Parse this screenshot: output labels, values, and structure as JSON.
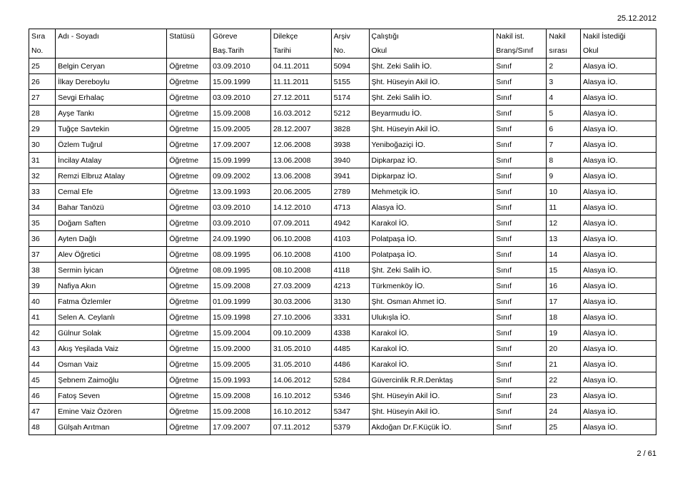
{
  "dateTop": "25.12.2012",
  "footer": "2 / 61",
  "headerRow1": [
    "Sıra",
    "Adı - Soyadı",
    "Statüsü",
    "Göreve",
    "Dilekçe",
    "Arşiv",
    "Çalıştığı",
    "Nakil ist.",
    "Nakil",
    "Nakil İstediği"
  ],
  "headerRow2": [
    "No.",
    "",
    "",
    "Baş.Tarih",
    "Tarihi",
    "No.",
    "Okul",
    "Branş/Sınıf",
    "sırası",
    "Okul"
  ],
  "rows": [
    [
      "25",
      "Belgin Ceryan",
      "Öğretme",
      "03.09.2010",
      "04.11.2011",
      "5094",
      "Şht. Zeki Salih İO.",
      "Sınıf",
      "2",
      "Alasya İO."
    ],
    [
      "26",
      "İlkay Dereboylu",
      "Öğretme",
      "15.09.1999",
      "11.11.2011",
      "5155",
      "Şht. Hüseyin Akil İO.",
      "Sınıf",
      "3",
      "Alasya İO."
    ],
    [
      "27",
      "Sevgi Erhalaç",
      "Öğretme",
      "03.09.2010",
      "27.12.2011",
      "5174",
      "Şht. Zeki Salih İO.",
      "Sınıf",
      "4",
      "Alasya İO."
    ],
    [
      "28",
      "Ayşe Tankı",
      "Öğretme",
      "15.09.2008",
      "16.03.2012",
      "5212",
      "Beyarmudu İO.",
      "Sınıf",
      "5",
      "Alasya İO."
    ],
    [
      "29",
      "Tuğçe Savtekin",
      "Öğretme",
      "15.09.2005",
      "28.12.2007",
      "3828",
      "Şht. Hüseyin Akil İO.",
      "Sınıf",
      "6",
      "Alasya İO."
    ],
    [
      "30",
      "Özlem Tuğrul",
      "Öğretme",
      "17.09.2007",
      "12.06.2008",
      "3938",
      "Yeniboğaziçi İO.",
      "Sınıf",
      "7",
      "Alasya İO."
    ],
    [
      "31",
      "İncilay Atalay",
      "Öğretme",
      "15.09.1999",
      "13.06.2008",
      "3940",
      "Dipkarpaz İO.",
      "Sınıf",
      "8",
      "Alasya İO."
    ],
    [
      "32",
      "Remzi Elbruz Atalay",
      "Öğretme",
      "09.09.2002",
      "13.06.2008",
      "3941",
      "Dipkarpaz İO.",
      "Sınıf",
      "9",
      "Alasya İO."
    ],
    [
      "33",
      "Cemal Efe",
      "Öğretme",
      "13.09.1993",
      "20.06.2005",
      "2789",
      "Mehmetçik İO.",
      "Sınıf",
      "10",
      "Alasya İO."
    ],
    [
      "34",
      "Bahar Tanözü",
      "Öğretme",
      "03.09.2010",
      "14.12.2010",
      "4713",
      "Alasya İO.",
      "Sınıf",
      "11",
      "Alasya İO."
    ],
    [
      "35",
      "Doğam Saften",
      "Öğretme",
      "03.09.2010",
      "07.09.2011",
      "4942",
      "Karakol İO.",
      "Sınıf",
      "12",
      "Alasya İO."
    ],
    [
      "36",
      "Ayten Dağlı",
      "Öğretme",
      "24.09.1990",
      "06.10.2008",
      "4103",
      "Polatpaşa İO.",
      "Sınıf",
      "13",
      "Alasya İO."
    ],
    [
      "37",
      "Alev Öğretici",
      "Öğretme",
      "08.09.1995",
      "06.10.2008",
      "4100",
      "Polatpaşa İO.",
      "Sınıf",
      "14",
      "Alasya İO."
    ],
    [
      "38",
      "Sermin İyican",
      "Öğretme",
      "08.09.1995",
      "08.10.2008",
      "4118",
      "Şht. Zeki Salih İO.",
      "Sınıf",
      "15",
      "Alasya İO."
    ],
    [
      "39",
      "Nafiya Akın",
      "Öğretme",
      "15.09.2008",
      "27.03.2009",
      "4213",
      "Türkmenköy İO.",
      "Sınıf",
      "16",
      "Alasya İO."
    ],
    [
      "40",
      "Fatma Özlemler",
      "Öğretme",
      "01.09.1999",
      "30.03.2006",
      "3130",
      "Şht. Osman Ahmet İO.",
      "Sınıf",
      "17",
      "Alasya İO."
    ],
    [
      "41",
      "Selen A. Ceylanlı",
      "Öğretme",
      "15.09.1998",
      "27.10.2006",
      "3331",
      "Ulukışla İO.",
      "Sınıf",
      "18",
      "Alasya İO."
    ],
    [
      "42",
      "Gülnur Solak",
      "Öğretme",
      "15.09.2004",
      "09.10.2009",
      "4338",
      "Karakol İO.",
      "Sınıf",
      "19",
      "Alasya İO."
    ],
    [
      "43",
      "Akış Yeşilada Vaiz",
      "Öğretme",
      "15.09.2000",
      "31.05.2010",
      "4485",
      "Karakol İO.",
      "Sınıf",
      "20",
      "Alasya İO."
    ],
    [
      "44",
      "Osman Vaiz",
      "Öğretme",
      "15.09.2005",
      "31.05.2010",
      "4486",
      "Karakol İO.",
      "Sınıf",
      "21",
      "Alasya İO."
    ],
    [
      "45",
      "Şebnem Zaimoğlu",
      "Öğretme",
      "15.09.1993",
      "14.06.2012",
      "5284",
      "Güvercinlik R.R.Denktaş",
      "Sınıf",
      "22",
      "Alasya İO."
    ],
    [
      "46",
      "Fatoş Seven",
      "Öğretme",
      "15.09.2008",
      "16.10.2012",
      "5346",
      "Şht. Hüseyin Akil İO.",
      "Sınıf",
      "23",
      "Alasya İO."
    ],
    [
      "47",
      "Emine Vaiz Özören",
      "Öğretme",
      "15.09.2008",
      "16.10.2012",
      "5347",
      "Şht. Hüseyin Akil İO.",
      "Sınıf",
      "24",
      "Alasya İO."
    ],
    [
      "48",
      "Gülşah Arıtman",
      "Öğretme",
      "17.09.2007",
      "07.11.2012",
      "5379",
      "Akdoğan Dr.F.Küçük İO.",
      "Sınıf",
      "25",
      "Alasya İO."
    ]
  ]
}
